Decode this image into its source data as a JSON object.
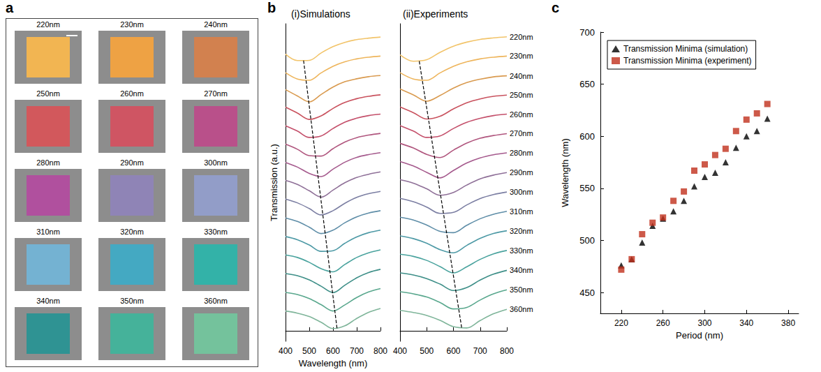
{
  "panel_a": {
    "panel_label": "a",
    "tiles": [
      {
        "label": "220nm",
        "color": "#f2b552"
      },
      {
        "label": "230nm",
        "color": "#eea244"
      },
      {
        "label": "240nm",
        "color": "#d2814f"
      },
      {
        "label": "250nm",
        "color": "#d2585c"
      },
      {
        "label": "260nm",
        "color": "#cf5563"
      },
      {
        "label": "270nm",
        "color": "#b9508a"
      },
      {
        "label": "280nm",
        "color": "#b0509e"
      },
      {
        "label": "290nm",
        "color": "#8f84b6"
      },
      {
        "label": "300nm",
        "color": "#929dc8"
      },
      {
        "label": "310nm",
        "color": "#74b2d2"
      },
      {
        "label": "320nm",
        "color": "#44a9c2"
      },
      {
        "label": "330nm",
        "color": "#33b2a8"
      },
      {
        "label": "340nm",
        "color": "#2f9393"
      },
      {
        "label": "350nm",
        "color": "#45b29a"
      },
      {
        "label": "360nm",
        "color": "#74c29c"
      }
    ]
  },
  "chart_data": [
    {
      "type": "line",
      "panel_label": "b",
      "title": "(i)Simulations",
      "x_label": "Wavelength (nm)",
      "y_label": "Transmission (a.u.)",
      "x": [
        400,
        450,
        500,
        550,
        600,
        650,
        700,
        750,
        800
      ],
      "xlim": [
        400,
        800
      ],
      "xticks": [
        400,
        500,
        600,
        700,
        800
      ],
      "ylim": [
        -0.5,
        14.5
      ],
      "tick_labels": "x",
      "grid": false,
      "series": [
        {
          "color": "#f2c46a",
          "values": [
            13.06,
            12.76,
            12.77,
            13.12,
            13.42,
            13.62,
            13.75,
            13.82,
            13.87
          ]
        },
        {
          "color": "#eeb55c",
          "values": [
            12.19,
            11.89,
            11.83,
            12.18,
            12.49,
            12.7,
            12.84,
            12.92,
            12.97
          ]
        },
        {
          "color": "#d99a4f",
          "values": [
            11.39,
            11.09,
            10.81,
            11.16,
            11.51,
            11.76,
            11.9,
            12.0,
            12.05
          ]
        },
        {
          "color": "#c9525e",
          "values": [
            10.56,
            10.28,
            9.98,
            10.15,
            10.5,
            10.78,
            10.96,
            11.07,
            11.14
          ]
        },
        {
          "color": "#c4506b",
          "values": [
            9.68,
            9.43,
            9.13,
            9.2,
            9.55,
            9.85,
            10.04,
            10.16,
            10.23
          ]
        },
        {
          "color": "#b0567e",
          "values": [
            8.81,
            8.57,
            8.27,
            8.25,
            8.6,
            8.91,
            9.12,
            9.24,
            9.32
          ]
        },
        {
          "color": "#a55a8d",
          "values": [
            7.95,
            7.73,
            7.43,
            7.28,
            7.63,
            7.96,
            8.19,
            8.32,
            8.41
          ]
        },
        {
          "color": "#8f7098",
          "values": [
            7.1,
            6.91,
            6.61,
            6.31,
            6.64,
            6.99,
            7.24,
            7.39,
            7.5
          ]
        },
        {
          "color": "#7c7fa3",
          "values": [
            6.22,
            6.04,
            5.77,
            5.47,
            5.67,
            6.02,
            6.3,
            6.47,
            6.58
          ]
        },
        {
          "color": "#5f8ea8",
          "values": [
            5.33,
            5.16,
            4.89,
            4.59,
            4.75,
            5.1,
            5.38,
            5.56,
            5.67
          ]
        },
        {
          "color": "#4e9aa6",
          "values": [
            4.45,
            4.3,
            4.05,
            3.75,
            3.78,
            4.13,
            4.43,
            4.63,
            4.75
          ]
        },
        {
          "color": "#4aa39e",
          "values": [
            3.58,
            3.46,
            3.23,
            2.93,
            2.78,
            3.13,
            3.46,
            3.68,
            3.82
          ]
        },
        {
          "color": "#3e8f88",
          "values": [
            2.7,
            2.6,
            2.4,
            2.1,
            1.8,
            2.15,
            2.5,
            2.75,
            2.9
          ]
        },
        {
          "color": "#5aa88e",
          "values": [
            1.81,
            1.71,
            1.52,
            1.23,
            0.93,
            1.22,
            1.57,
            1.83,
            1.99
          ]
        },
        {
          "color": "#7fb59a",
          "values": [
            0.93,
            0.83,
            0.67,
            0.4,
            0.1,
            0.23,
            0.58,
            0.87,
            1.05
          ]
        },
        {
          "color": "#000000",
          "line_style": "dashed",
          "x": [
            476,
            617
          ],
          "values": [
            12.76,
            0.1
          ]
        }
      ]
    },
    {
      "type": "line",
      "title": "(ii)Experiments",
      "x": [
        400,
        450,
        500,
        550,
        600,
        650,
        700,
        750,
        800
      ],
      "xlim": [
        400,
        800
      ],
      "xticks": [
        400,
        500,
        600,
        700,
        800
      ],
      "ylim": [
        -0.5,
        14.5
      ],
      "tick_labels": "x",
      "grid": false,
      "series": [
        {
          "name": "220nm",
          "color": "#f2c46a",
          "values": [
            13.03,
            12.73,
            12.8,
            13.15,
            13.44,
            13.63,
            13.76,
            13.83,
            13.88
          ]
        },
        {
          "name": "230nm",
          "color": "#eeb55c",
          "values": [
            12.19,
            11.89,
            11.83,
            12.18,
            12.49,
            12.7,
            12.84,
            12.92,
            12.97
          ]
        },
        {
          "name": "240nm",
          "color": "#d99a4f",
          "values": [
            11.42,
            11.14,
            10.84,
            11.11,
            11.46,
            11.72,
            11.88,
            11.99,
            12.04
          ]
        },
        {
          "name": "250nm",
          "color": "#c9525e",
          "values": [
            10.57,
            10.3,
            10.0,
            10.13,
            10.48,
            10.77,
            10.95,
            11.07,
            11.13
          ]
        },
        {
          "name": "260nm",
          "color": "#c4506b",
          "values": [
            9.69,
            9.43,
            9.13,
            9.2,
            9.55,
            9.84,
            10.03,
            10.16,
            10.23
          ]
        },
        {
          "name": "270nm",
          "color": "#b0567e",
          "values": [
            8.85,
            8.63,
            8.33,
            8.18,
            8.53,
            8.86,
            9.09,
            9.22,
            9.31
          ]
        },
        {
          "name": "280nm",
          "color": "#a55a8d",
          "values": [
            7.99,
            7.78,
            7.48,
            7.22,
            7.57,
            7.92,
            8.16,
            8.31,
            8.4
          ]
        },
        {
          "name": "290nm",
          "color": "#8f7098",
          "values": [
            7.13,
            6.97,
            6.7,
            6.4,
            6.53,
            6.88,
            7.17,
            7.35,
            7.47
          ]
        },
        {
          "name": "300nm",
          "color": "#7c7fa3",
          "values": [
            6.25,
            6.09,
            5.84,
            5.54,
            5.59,
            5.94,
            6.24,
            6.43,
            6.55
          ]
        },
        {
          "name": "310nm",
          "color": "#5f8ea8",
          "values": [
            5.36,
            5.23,
            4.99,
            4.69,
            4.63,
            4.98,
            5.29,
            5.5,
            5.64
          ]
        },
        {
          "name": "320nm",
          "color": "#4e9aa6",
          "values": [
            4.48,
            4.35,
            4.13,
            3.83,
            3.68,
            4.03,
            4.36,
            4.59,
            4.72
          ]
        },
        {
          "name": "330nm",
          "color": "#4aa39e",
          "values": [
            3.61,
            3.51,
            3.32,
            3.03,
            2.73,
            3.02,
            3.37,
            3.63,
            3.79
          ]
        },
        {
          "name": "340nm",
          "color": "#3e8f88",
          "values": [
            2.73,
            2.63,
            2.46,
            2.2,
            1.9,
            2.04,
            2.39,
            2.67,
            2.85
          ]
        },
        {
          "name": "350nm",
          "color": "#5aa88e",
          "values": [
            1.84,
            1.74,
            1.59,
            1.33,
            1.03,
            1.1,
            1.45,
            1.74,
            1.93
          ]
        },
        {
          "name": "360nm",
          "color": "#7fb59a",
          "values": [
            0.96,
            0.86,
            0.72,
            0.49,
            0.19,
            0.13,
            0.48,
            0.8,
            1.01
          ]
        },
        {
          "color": "#000000",
          "line_style": "dashed",
          "x": [
            472,
            631
          ],
          "values": [
            12.73,
            0.13
          ]
        }
      ]
    },
    {
      "type": "scatter",
      "panel_label": "c",
      "x_label": "Period (nm)",
      "y_label": "Wavelength (nm)",
      "x": [
        220,
        230,
        240,
        250,
        260,
        270,
        280,
        290,
        300,
        310,
        320,
        330,
        340,
        350,
        360
      ],
      "xlim": [
        200,
        390
      ],
      "xticks": [
        220,
        260,
        300,
        340,
        380
      ],
      "ylim": [
        430,
        700
      ],
      "yticks": [
        450,
        500,
        550,
        600,
        650,
        700
      ],
      "grid": false,
      "legend": "upper left",
      "series": [
        {
          "name": "Transmission Minima (simulation)",
          "color": "#000000",
          "marker": "triangle",
          "values": [
            476,
            482,
            498,
            514,
            521,
            528,
            538,
            552,
            561,
            565,
            575,
            589,
            600,
            605,
            617
          ]
        },
        {
          "name": "Transmission Minima (experiment)",
          "color": "#c0301c",
          "marker": "square",
          "values": [
            472,
            482,
            506,
            517,
            522,
            538,
            547,
            567,
            573,
            582,
            588,
            605,
            616,
            622,
            631
          ]
        }
      ]
    }
  ]
}
